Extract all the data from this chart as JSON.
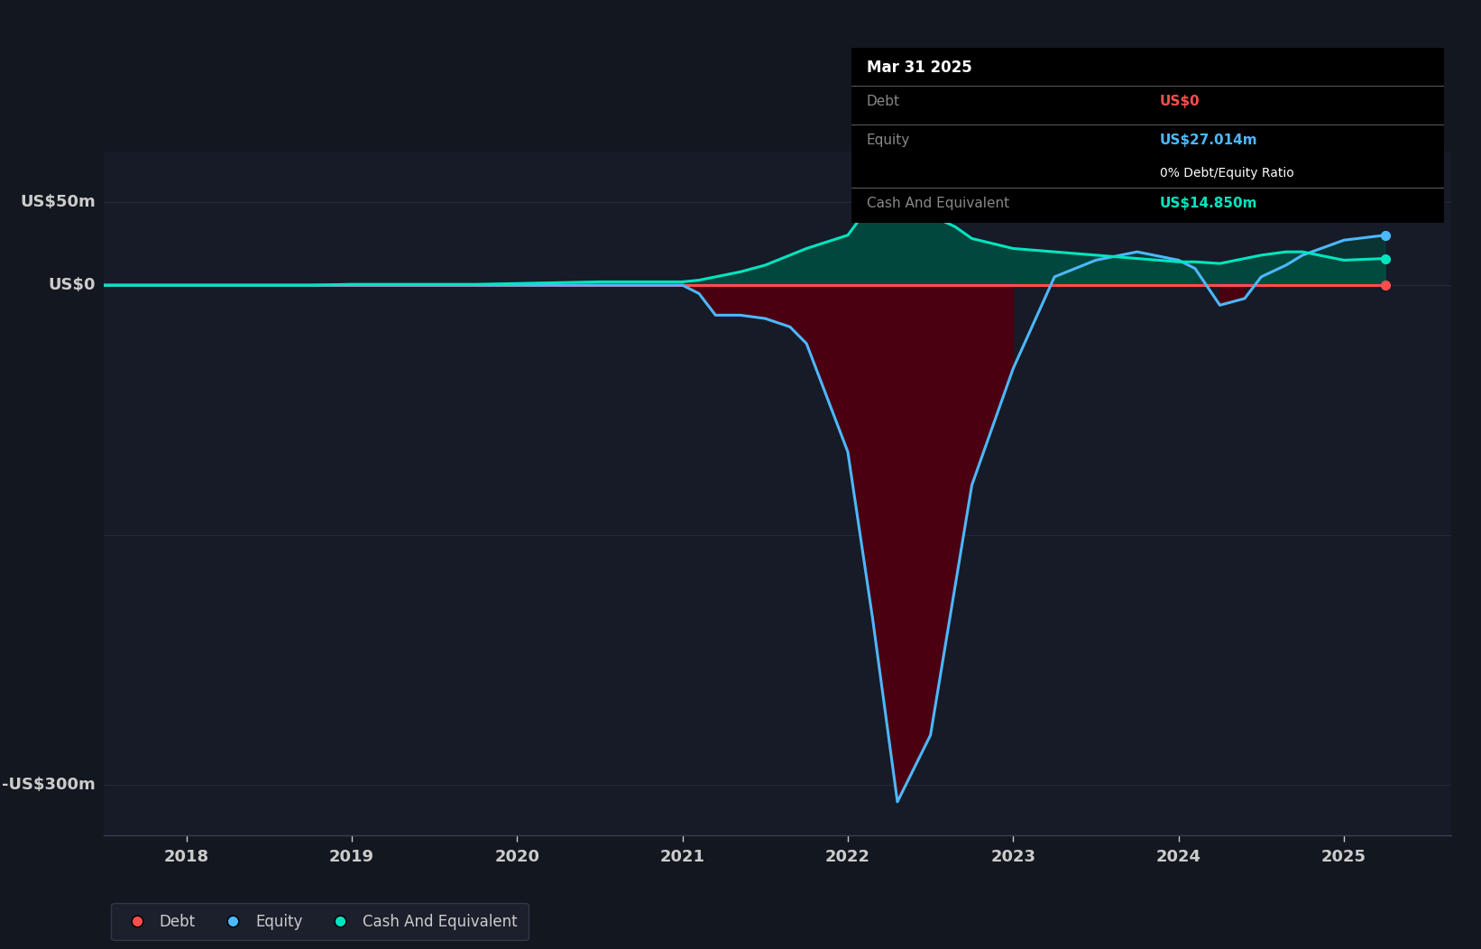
{
  "bg_color": "#13171f",
  "plot_bg_color": "#161b27",
  "grid_color": "#2a2e3a",
  "tooltip_bg": "#000000",
  "tooltip_title": "Mar 31 2025",
  "tooltip_debt_label": "Debt",
  "tooltip_debt_value": "US$0",
  "tooltip_equity_label": "Equity",
  "tooltip_equity_value": "US$27.014m",
  "tooltip_ratio": "0% Debt/Equity Ratio",
  "tooltip_cash_label": "Cash And Equivalent",
  "tooltip_cash_value": "US$14.850m",
  "debt_color": "#ff4d4d",
  "equity_color": "#4db8ff",
  "cash_color": "#00e5c0",
  "fill_cash_color": "#004d40",
  "fill_equity_neg_color": "#4a0010",
  "ylabel_50": "US$50m",
  "ylabel_0": "US$0",
  "ylabel_neg300": "-US$300m",
  "xlim_start": 2017.5,
  "xlim_end": 2025.65,
  "ylim_min": -330,
  "ylim_max": 80,
  "xticks": [
    2018,
    2019,
    2020,
    2021,
    2022,
    2023,
    2024,
    2025
  ],
  "time_points": [
    2017.5,
    2017.75,
    2018.0,
    2018.25,
    2018.5,
    2018.75,
    2019.0,
    2019.25,
    2019.5,
    2019.75,
    2020.0,
    2020.25,
    2020.5,
    2020.75,
    2021.0,
    2021.1,
    2021.2,
    2021.35,
    2021.5,
    2021.65,
    2021.75,
    2022.0,
    2022.15,
    2022.3,
    2022.5,
    2022.65,
    2022.75,
    2023.0,
    2023.25,
    2023.5,
    2023.75,
    2024.0,
    2024.1,
    2024.25,
    2024.4,
    2024.5,
    2024.65,
    2024.75,
    2025.0,
    2025.25
  ],
  "equity_values": [
    0,
    0,
    0,
    0,
    0,
    0,
    0,
    0,
    0,
    0,
    0,
    0,
    0,
    0,
    0,
    -5,
    -18,
    -18,
    -20,
    -25,
    -35,
    -100,
    -200,
    -310,
    -270,
    -180,
    -120,
    -50,
    5,
    15,
    20,
    15,
    10,
    -12,
    -8,
    5,
    12,
    18,
    27,
    30
  ],
  "cash_values": [
    0,
    0,
    0,
    0,
    0,
    0,
    0.5,
    0.5,
    0.5,
    0.5,
    1,
    1.5,
    2,
    2,
    2,
    3,
    5,
    8,
    12,
    18,
    22,
    30,
    50,
    48,
    42,
    35,
    28,
    22,
    20,
    18,
    16,
    14,
    14,
    13,
    16,
    18,
    20,
    20,
    15,
    16
  ],
  "debt_values": [
    0,
    0,
    0,
    0,
    0,
    0,
    0,
    0,
    0,
    0,
    0,
    0,
    0,
    0,
    0,
    0,
    0,
    0,
    0,
    0,
    0,
    0,
    0,
    0,
    0,
    0,
    0,
    0,
    0,
    0,
    0,
    0,
    0,
    0,
    0,
    0,
    0,
    0,
    0,
    0
  ],
  "legend_items": [
    {
      "label": "Debt",
      "color": "#ff4d4d"
    },
    {
      "label": "Equity",
      "color": "#4db8ff"
    },
    {
      "label": "Cash And Equivalent",
      "color": "#00e5c0"
    }
  ]
}
